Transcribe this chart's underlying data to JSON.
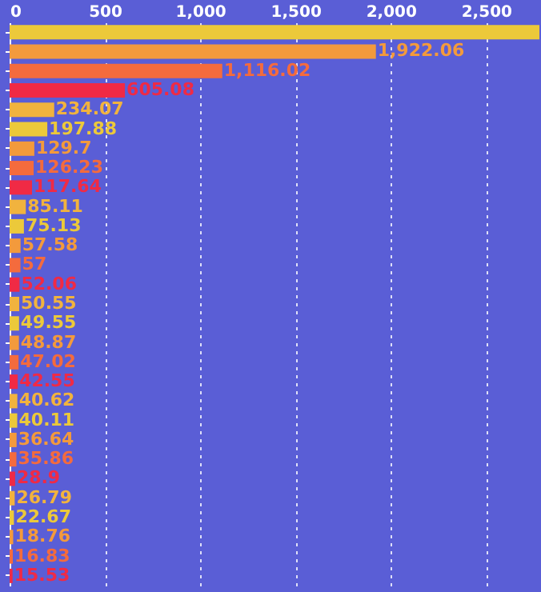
{
  "chart_data": {
    "type": "bar",
    "orientation": "horizontal",
    "categories": [
      null,
      null,
      null,
      null,
      null,
      null,
      null,
      null,
      null,
      null,
      null,
      null,
      null,
      null,
      null,
      null,
      null,
      null,
      null,
      null,
      null,
      null,
      null,
      null,
      null,
      null,
      null,
      null,
      null
    ],
    "values": [
      2780,
      1922.06,
      1116.02,
      605.08,
      234.07,
      197.88,
      129.7,
      126.23,
      117.64,
      85.11,
      75.13,
      57.58,
      57,
      52.06,
      50.55,
      49.55,
      48.87,
      47.02,
      42.55,
      40.62,
      40.11,
      36.64,
      35.86,
      28.9,
      26.79,
      22.67,
      18.76,
      16.83,
      15.53
    ],
    "value_labels": [
      null,
      "1,922.06",
      "1,116.02",
      "605.08",
      "234.07",
      "197.88",
      "129.7",
      "126.23",
      "117.64",
      "85.11",
      "75.13",
      "57.58",
      "57",
      "52.06",
      "50.55",
      "49.55",
      "48.87",
      "47.02",
      "42.55",
      "40.62",
      "40.11",
      "36.64",
      "35.86",
      "28.9",
      "26.79",
      "22.67",
      "18.76",
      "16.83",
      "15.53"
    ],
    "colors": [
      "#ecc93a",
      "#f39a3c",
      "#f46b3d",
      "#f02a45",
      "#f1b33e",
      "#ecc93a",
      "#f39a3c",
      "#f46b3d",
      "#f02a45",
      "#f1b33e",
      "#ecc93a",
      "#f39a3c",
      "#f46b3d",
      "#f02a45",
      "#f1b33e",
      "#ecc93a",
      "#f39a3c",
      "#f46b3d",
      "#f02a45",
      "#f1b33e",
      "#ecc93a",
      "#f39a3c",
      "#f46b3d",
      "#f02a45",
      "#f1b33e",
      "#ecc93a",
      "#f39a3c",
      "#f46b3d",
      "#f02a45"
    ],
    "xlim": [
      0,
      2780
    ],
    "xticks": [
      0,
      500,
      {
        "value": 1000,
        "label": "1,000"
      },
      {
        "value": 1500,
        "label": "1,500"
      },
      {
        "value": 2000,
        "label": "2,000"
      },
      {
        "value": 2500,
        "label": "2,500"
      }
    ],
    "grid": "x",
    "tick_labels": "x"
  }
}
